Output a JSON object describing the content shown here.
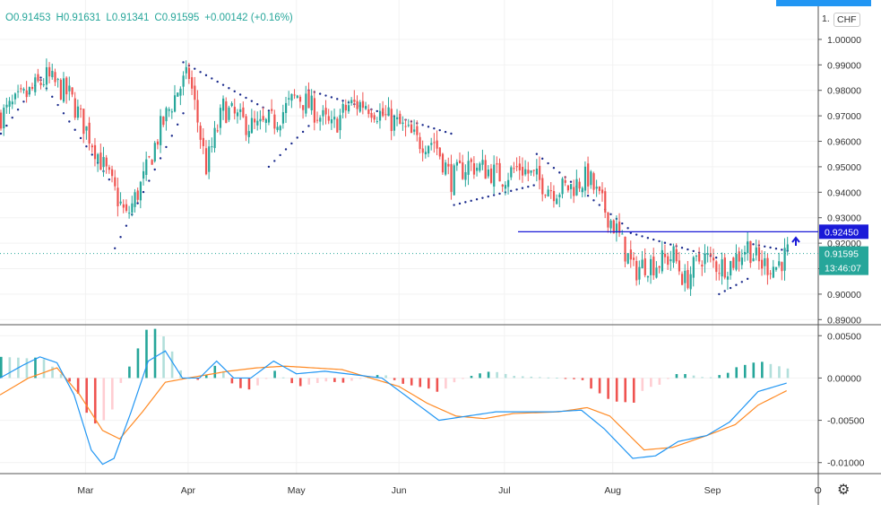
{
  "header": {
    "open_label": "O",
    "open": "0.91453",
    "high_label": "H",
    "high": "0.91631",
    "low_label": "L",
    "low": "0.91341",
    "close_label": "C",
    "close": "0.91595",
    "change": "+0.00142 (+0.16%)"
  },
  "currency_badge": "CHF",
  "top_partial_tick": "1.",
  "settings_icon": "gear-icon",
  "chart_data": [
    {
      "type": "candlestick",
      "ylim": [
        0.888,
        1.013
      ],
      "x_tick_labels": [
        "Mar",
        "Apr",
        "May",
        "Jun",
        "Jul",
        "Aug",
        "Sep",
        "O"
      ],
      "y_tick_labels": [
        "1.00000",
        "0.99000",
        "0.98000",
        "0.97000",
        "0.96000",
        "0.95000",
        "0.94000",
        "0.93000",
        "0.92000",
        "0.91000",
        "0.90000",
        "0.89000"
      ],
      "y_ticks": [
        1.0,
        0.99,
        0.98,
        0.97,
        0.96,
        0.95,
        0.94,
        0.93,
        0.92,
        0.91,
        0.9,
        0.89
      ],
      "horizontal_line": {
        "value": 0.9245,
        "label": "0.92450",
        "color": "#1a1ad8"
      },
      "last_price": {
        "value": 0.91595,
        "label": "0.91595",
        "countdown": "13:46:07",
        "color": "#26a69a"
      },
      "up_color": "#26a69a",
      "down_color": "#ef5350",
      "sar_color": "#1a2a8c",
      "close_anchors": [
        [
          0,
          0.97
        ],
        [
          10,
          0.979
        ],
        [
          16,
          0.985
        ],
        [
          24,
          0.978
        ],
        [
          32,
          0.96
        ],
        [
          38,
          0.945
        ],
        [
          44,
          0.93
        ],
        [
          50,
          0.945
        ],
        [
          56,
          0.965
        ],
        [
          62,
          0.98
        ],
        [
          66,
          0.986
        ],
        [
          72,
          0.95
        ],
        [
          78,
          0.973
        ],
        [
          84,
          0.968
        ],
        [
          90,
          0.965
        ],
        [
          96,
          0.968
        ],
        [
          104,
          0.978
        ],
        [
          110,
          0.972
        ],
        [
          116,
          0.965
        ],
        [
          122,
          0.974
        ],
        [
          128,
          0.975
        ],
        [
          134,
          0.97
        ],
        [
          140,
          0.966
        ],
        [
          146,
          0.96
        ],
        [
          152,
          0.96
        ],
        [
          158,
          0.945
        ],
        [
          164,
          0.951
        ],
        [
          170,
          0.949
        ],
        [
          176,
          0.946
        ],
        [
          182,
          0.95
        ],
        [
          188,
          0.945
        ],
        [
          194,
          0.941
        ],
        [
          200,
          0.942
        ],
        [
          206,
          0.946
        ],
        [
          210,
          0.937
        ],
        [
          216,
          0.925
        ],
        [
          222,
          0.909
        ],
        [
          226,
          0.912
        ],
        [
          230,
          0.912
        ],
        [
          236,
          0.915
        ],
        [
          240,
          0.905
        ],
        [
          246,
          0.915
        ],
        [
          252,
          0.911
        ],
        [
          256,
          0.912
        ],
        [
          262,
          0.919
        ],
        [
          266,
          0.912
        ],
        [
          272,
          0.911
        ],
        [
          276,
          0.916
        ]
      ],
      "sar_segments": [
        {
          "start": 0,
          "end": 14,
          "from": 0.963,
          "to": 0.985
        },
        {
          "start": 14,
          "end": 38,
          "from": 0.984,
          "to": 0.945
        },
        {
          "start": 40,
          "end": 64,
          "from": 0.918,
          "to": 0.971
        },
        {
          "start": 64,
          "end": 94,
          "from": 0.991,
          "to": 0.972
        },
        {
          "start": 94,
          "end": 108,
          "from": 0.95,
          "to": 0.966
        },
        {
          "start": 108,
          "end": 158,
          "from": 0.98,
          "to": 0.963
        },
        {
          "start": 159,
          "end": 188,
          "from": 0.935,
          "to": 0.943
        },
        {
          "start": 188,
          "end": 221,
          "from": 0.955,
          "to": 0.925
        },
        {
          "start": 221,
          "end": 252,
          "from": 0.924,
          "to": 0.914
        },
        {
          "start": 252,
          "end": 262,
          "from": 0.9,
          "to": 0.906
        },
        {
          "start": 262,
          "end": 276,
          "from": 0.92,
          "to": 0.917
        }
      ]
    },
    {
      "type": "macd",
      "ylim": [
        -0.0113,
        0.0063
      ],
      "y_tick_labels": [
        "0.00500",
        "0.00000",
        "-0.00500",
        "-0.01000"
      ],
      "y_ticks": [
        0.005,
        0.0,
        -0.005,
        -0.01
      ],
      "macd_color": "#2196f3",
      "signal_color": "#ff8a24",
      "histogram_colors": {
        "rising_pos": "#26a69a",
        "falling_pos": "#b2dfdb",
        "falling_neg": "#ef5350",
        "rising_neg": "#ffcdd2"
      },
      "macd_anchors": [
        [
          0,
          0.0
        ],
        [
          8,
          0.0015
        ],
        [
          14,
          0.0025
        ],
        [
          20,
          0.0018
        ],
        [
          26,
          -0.002
        ],
        [
          32,
          -0.0085
        ],
        [
          36,
          -0.0102
        ],
        [
          40,
          -0.0095
        ],
        [
          46,
          -0.004
        ],
        [
          52,
          0.002
        ],
        [
          58,
          0.0032
        ],
        [
          64,
          0.0
        ],
        [
          70,
          0.0
        ],
        [
          76,
          0.002
        ],
        [
          82,
          0.0
        ],
        [
          88,
          0.0
        ],
        [
          96,
          0.002
        ],
        [
          104,
          0.0005
        ],
        [
          114,
          0.0008
        ],
        [
          124,
          0.0004
        ],
        [
          134,
          0.0
        ],
        [
          144,
          -0.0025
        ],
        [
          154,
          -0.005
        ],
        [
          164,
          -0.0045
        ],
        [
          174,
          -0.004
        ],
        [
          184,
          -0.004
        ],
        [
          194,
          -0.004
        ],
        [
          204,
          -0.0038
        ],
        [
          212,
          -0.006
        ],
        [
          222,
          -0.0095
        ],
        [
          230,
          -0.0092
        ],
        [
          238,
          -0.0075
        ],
        [
          248,
          -0.0068
        ],
        [
          256,
          -0.0052
        ],
        [
          266,
          -0.0016
        ],
        [
          276,
          -0.0006
        ]
      ],
      "signal_anchors": [
        [
          0,
          -0.002
        ],
        [
          10,
          0.0
        ],
        [
          20,
          0.0012
        ],
        [
          28,
          -0.002
        ],
        [
          36,
          -0.0062
        ],
        [
          42,
          -0.0072
        ],
        [
          50,
          -0.004
        ],
        [
          58,
          -0.0005
        ],
        [
          66,
          0.0
        ],
        [
          80,
          0.0008
        ],
        [
          90,
          0.0012
        ],
        [
          100,
          0.0014
        ],
        [
          120,
          0.001
        ],
        [
          140,
          -0.001
        ],
        [
          150,
          -0.003
        ],
        [
          160,
          -0.0045
        ],
        [
          170,
          -0.0048
        ],
        [
          180,
          -0.0042
        ],
        [
          196,
          -0.004
        ],
        [
          206,
          -0.0035
        ],
        [
          214,
          -0.0045
        ],
        [
          226,
          -0.0085
        ],
        [
          236,
          -0.0082
        ],
        [
          248,
          -0.0068
        ],
        [
          258,
          -0.0055
        ],
        [
          266,
          -0.0032
        ],
        [
          276,
          -0.0015
        ]
      ]
    }
  ]
}
